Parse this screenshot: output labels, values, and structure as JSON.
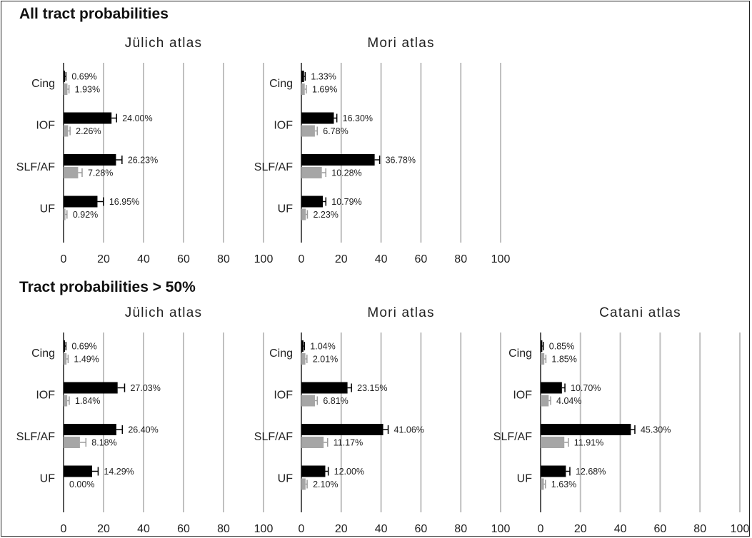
{
  "sections": [
    {
      "title": "All tract probabilities"
    },
    {
      "title": "Tract probabilities > 50%"
    }
  ],
  "colors": {
    "series_1": "#000000",
    "series_2": "#a6a6a6",
    "grid": "#c0c0c0",
    "axis": "#222222"
  },
  "chart_data": [
    {
      "type": "bar",
      "orientation": "horizontal",
      "section": "All tract probabilities",
      "title": "Jülich atlas",
      "categories": [
        "Cing",
        "IOF",
        "SLF/AF",
        "UF"
      ],
      "series": [
        {
          "values": [
            0.69,
            24.0,
            26.23,
            16.95
          ],
          "labels": [
            "0.69%",
            "24.00%",
            "26.23%",
            "16.95%"
          ],
          "errors": [
            0.5,
            2.5,
            3.0,
            3.0
          ]
        },
        {
          "values": [
            1.93,
            2.26,
            7.28,
            0.92
          ],
          "labels": [
            "1.93%",
            "2.26%",
            "7.28%",
            "0.92%"
          ],
          "errors": [
            0.8,
            1.0,
            2.0,
            0.8
          ]
        }
      ],
      "xticks": [
        0,
        20,
        40,
        60,
        80,
        100
      ],
      "xlim": [
        0,
        100
      ],
      "grid": true
    },
    {
      "type": "bar",
      "orientation": "horizontal",
      "section": "All tract probabilities",
      "title": "Mori atlas",
      "categories": [
        "Cing",
        "IOF",
        "SLF/AF",
        "UF"
      ],
      "series": [
        {
          "values": [
            1.33,
            16.3,
            36.78,
            10.79
          ],
          "labels": [
            "1.33%",
            "16.30%",
            "36.78%",
            "10.79%"
          ],
          "errors": [
            0.6,
            1.5,
            2.5,
            1.5
          ]
        },
        {
          "values": [
            1.69,
            6.78,
            10.28,
            2.23
          ],
          "labels": [
            "1.69%",
            "6.78%",
            "10.28%",
            "2.23%"
          ],
          "errors": [
            0.8,
            1.2,
            2.0,
            0.8
          ]
        }
      ],
      "xticks": [
        0,
        20,
        40,
        60,
        80,
        100
      ],
      "xlim": [
        0,
        100
      ],
      "grid": true
    },
    {
      "type": "bar",
      "orientation": "horizontal",
      "section": "Tract probabilities > 50%",
      "title": "Jülich atlas",
      "categories": [
        "Cing",
        "IOF",
        "SLF/AF",
        "UF"
      ],
      "series": [
        {
          "values": [
            0.69,
            27.03,
            26.4,
            14.29
          ],
          "labels": [
            "0.69%",
            "27.03%",
            "26.40%",
            "14.29%"
          ],
          "errors": [
            0.5,
            3.5,
            3.0,
            3.0
          ]
        },
        {
          "values": [
            1.49,
            1.84,
            8.18,
            0.0
          ],
          "labels": [
            "1.49%",
            "1.84%",
            "8.18%",
            "0.00%"
          ],
          "errors": [
            0.8,
            1.0,
            3.0,
            0
          ]
        }
      ],
      "xticks": [
        0,
        20,
        40,
        60,
        80,
        100
      ],
      "xlim": [
        0,
        100
      ],
      "grid": true
    },
    {
      "type": "bar",
      "orientation": "horizontal",
      "section": "Tract probabilities > 50%",
      "title": "Mori atlas",
      "categories": [
        "Cing",
        "IOF",
        "SLF/AF",
        "UF"
      ],
      "series": [
        {
          "values": [
            1.04,
            23.15,
            41.06,
            12.0
          ],
          "labels": [
            "1.04%",
            "23.15%",
            "41.06%",
            "12.00%"
          ],
          "errors": [
            0.5,
            2.0,
            2.5,
            1.5
          ]
        },
        {
          "values": [
            2.01,
            6.81,
            11.17,
            2.1
          ],
          "labels": [
            "2.01%",
            "6.81%",
            "11.17%",
            "2.10%"
          ],
          "errors": [
            0.8,
            1.2,
            2.0,
            0.8
          ]
        }
      ],
      "xticks": [
        0,
        20,
        40,
        60,
        80,
        100
      ],
      "xlim": [
        0,
        100
      ],
      "grid": true
    },
    {
      "type": "bar",
      "orientation": "horizontal",
      "section": "Tract probabilities > 50%",
      "title": "Catani atlas",
      "categories": [
        "Cing",
        "IOF",
        "SLF/AF",
        "UF"
      ],
      "series": [
        {
          "values": [
            0.85,
            10.7,
            45.3,
            12.68
          ],
          "labels": [
            "0.85%",
            "10.70%",
            "45.30%",
            "12.68%"
          ],
          "errors": [
            0.5,
            1.5,
            2.0,
            2.0
          ]
        },
        {
          "values": [
            1.85,
            4.04,
            11.91,
            1.63
          ],
          "labels": [
            "1.85%",
            "4.04%",
            "11.91%",
            "1.63%"
          ],
          "errors": [
            0.8,
            1.0,
            2.0,
            0.8
          ]
        }
      ],
      "xticks": [
        0,
        20,
        40,
        60,
        80,
        100
      ],
      "xlim": [
        0,
        100
      ],
      "grid": true
    }
  ]
}
